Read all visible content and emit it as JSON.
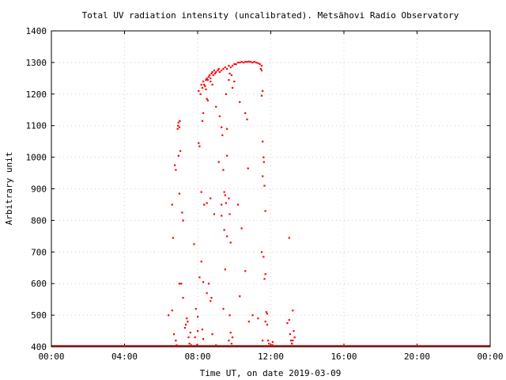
{
  "chart_data": {
    "type": "scatter",
    "title": "Total UV radiation intensity (uncalibrated). Metsähovi Radio Observatory",
    "xlabel": "Time UT, on date 2019-03-09",
    "ylabel": "Arbitrary unit",
    "xlim": [
      0,
      24
    ],
    "ylim": [
      400,
      1400
    ],
    "x_ticks": [
      0,
      4,
      8,
      12,
      16,
      20,
      24
    ],
    "x_tick_labels": [
      "00:00",
      "04:00",
      "08:00",
      "12:00",
      "16:00",
      "20:00",
      "00:00"
    ],
    "y_ticks": [
      400,
      500,
      600,
      700,
      800,
      900,
      1000,
      1100,
      1200,
      1300,
      1400
    ],
    "grid": true,
    "series": [
      {
        "color": "#ff0000",
        "baseline": {
          "x_range": [
            0,
            24
          ],
          "y": 400
        },
        "points": [
          [
            6.4,
            500
          ],
          [
            6.6,
            515
          ],
          [
            6.7,
            440
          ],
          [
            6.8,
            420
          ],
          [
            6.85,
            405
          ],
          [
            6.6,
            850
          ],
          [
            6.65,
            745
          ],
          [
            6.75,
            975
          ],
          [
            6.8,
            960
          ],
          [
            6.9,
            1090
          ],
          [
            6.92,
            1100
          ],
          [
            6.95,
            1110
          ],
          [
            7.0,
            1095
          ],
          [
            7.02,
            1115
          ],
          [
            6.95,
            1005
          ],
          [
            7.05,
            1020
          ],
          [
            7.0,
            885
          ],
          [
            7.15,
            825
          ],
          [
            7.2,
            800
          ],
          [
            7.0,
            600
          ],
          [
            7.1,
            600
          ],
          [
            7.2,
            555
          ],
          [
            7.3,
            460
          ],
          [
            7.35,
            470
          ],
          [
            7.4,
            490
          ],
          [
            7.45,
            480
          ],
          [
            7.5,
            430
          ],
          [
            7.6,
            445
          ],
          [
            7.55,
            410
          ],
          [
            7.65,
            405
          ],
          [
            7.8,
            725
          ],
          [
            7.9,
            520
          ],
          [
            8.0,
            450
          ],
          [
            7.85,
            430
          ],
          [
            7.95,
            405
          ],
          [
            8.05,
            1210
          ],
          [
            8.05,
            1045
          ],
          [
            8.1,
            1035
          ],
          [
            8.15,
            1200
          ],
          [
            8.2,
            1230
          ],
          [
            8.25,
            1220
          ],
          [
            8.3,
            1240
          ],
          [
            8.35,
            1230
          ],
          [
            8.4,
            1225
          ],
          [
            8.45,
            1245
          ],
          [
            8.5,
            1250
          ],
          [
            8.55,
            1245
          ],
          [
            8.6,
            1255
          ],
          [
            8.65,
            1260
          ],
          [
            8.7,
            1250
          ],
          [
            8.75,
            1265
          ],
          [
            8.8,
            1270
          ],
          [
            8.85,
            1260
          ],
          [
            8.9,
            1275
          ],
          [
            8.95,
            1265
          ],
          [
            9.0,
            1270
          ],
          [
            9.1,
            1275
          ],
          [
            9.15,
            1280
          ],
          [
            9.2,
            1270
          ],
          [
            9.3,
            1275
          ],
          [
            9.4,
            1280
          ],
          [
            9.5,
            1285
          ],
          [
            9.6,
            1280
          ],
          [
            9.7,
            1290
          ],
          [
            9.8,
            1285
          ],
          [
            9.9,
            1290
          ],
          [
            10.0,
            1295
          ],
          [
            10.1,
            1295
          ],
          [
            10.2,
            1300
          ],
          [
            10.3,
            1300
          ],
          [
            10.4,
            1302
          ],
          [
            10.5,
            1300
          ],
          [
            10.6,
            1302
          ],
          [
            10.7,
            1302
          ],
          [
            10.8,
            1303
          ],
          [
            10.9,
            1302
          ],
          [
            11.0,
            1300
          ],
          [
            11.1,
            1302
          ],
          [
            11.2,
            1300
          ],
          [
            11.3,
            1298
          ],
          [
            11.4,
            1295
          ],
          [
            11.5,
            1290
          ],
          [
            11.45,
            1280
          ],
          [
            11.5,
            1275
          ],
          [
            11.55,
            1210
          ],
          [
            11.5,
            1195
          ],
          [
            8.3,
            1140
          ],
          [
            8.25,
            1115
          ],
          [
            8.5,
            1185
          ],
          [
            8.45,
            1215
          ],
          [
            8.55,
            1180
          ],
          [
            8.7,
            1240
          ],
          [
            8.8,
            1230
          ],
          [
            9.0,
            1160
          ],
          [
            9.2,
            1130
          ],
          [
            9.3,
            1095
          ],
          [
            9.35,
            1070
          ],
          [
            9.6,
            1090
          ],
          [
            9.55,
            1200
          ],
          [
            9.7,
            1245
          ],
          [
            9.75,
            1265
          ],
          [
            8.2,
            890
          ],
          [
            8.35,
            850
          ],
          [
            8.5,
            855
          ],
          [
            8.7,
            870
          ],
          [
            8.9,
            820
          ],
          [
            9.15,
            985
          ],
          [
            9.3,
            850
          ],
          [
            9.4,
            960
          ],
          [
            9.45,
            890
          ],
          [
            9.5,
            880
          ],
          [
            9.55,
            855
          ],
          [
            9.6,
            1005
          ],
          [
            9.7,
            870
          ],
          [
            9.75,
            820
          ],
          [
            9.9,
            1220
          ],
          [
            9.85,
            1260
          ],
          [
            10.0,
            1240
          ],
          [
            10.3,
            1175
          ],
          [
            10.7,
            1120
          ],
          [
            10.6,
            1140
          ],
          [
            10.75,
            965
          ],
          [
            9.3,
            815
          ],
          [
            9.45,
            770
          ],
          [
            9.6,
            750
          ],
          [
            9.8,
            730
          ],
          [
            10.2,
            850
          ],
          [
            10.4,
            775
          ],
          [
            10.6,
            640
          ],
          [
            10.3,
            560
          ],
          [
            10.8,
            480
          ],
          [
            11.0,
            500
          ],
          [
            11.3,
            490
          ],
          [
            11.5,
            700
          ],
          [
            11.55,
            1050
          ],
          [
            11.6,
            1000
          ],
          [
            11.62,
            985
          ],
          [
            11.55,
            940
          ],
          [
            11.65,
            910
          ],
          [
            11.7,
            830
          ],
          [
            11.6,
            685
          ],
          [
            11.7,
            630
          ],
          [
            11.65,
            615
          ],
          [
            11.75,
            510
          ],
          [
            11.8,
            505
          ],
          [
            11.7,
            480
          ],
          [
            11.8,
            470
          ],
          [
            11.85,
            420
          ],
          [
            11.9,
            410
          ],
          [
            12.0,
            405
          ],
          [
            12.1,
            405
          ],
          [
            12.2,
            402
          ],
          [
            8.2,
            670
          ],
          [
            8.1,
            620
          ],
          [
            8.3,
            605
          ],
          [
            8.5,
            570
          ],
          [
            8.6,
            600
          ],
          [
            8.7,
            545
          ],
          [
            8.75,
            555
          ],
          [
            8.0,
            495
          ],
          [
            8.25,
            455
          ],
          [
            8.8,
            440
          ],
          [
            8.3,
            425
          ],
          [
            9.0,
            405
          ],
          [
            9.4,
            520
          ],
          [
            9.5,
            645
          ],
          [
            9.75,
            500
          ],
          [
            9.8,
            445
          ],
          [
            9.9,
            430
          ],
          [
            9.7,
            420
          ],
          [
            9.85,
            410
          ],
          [
            11.55,
            420
          ],
          [
            12.1,
            415
          ],
          [
            12.9,
            475
          ],
          [
            13.0,
            485
          ],
          [
            13.05,
            440
          ],
          [
            13.1,
            420
          ],
          [
            13.2,
            515
          ],
          [
            13.25,
            450
          ],
          [
            13.3,
            430
          ],
          [
            13.2,
            420
          ],
          [
            13.0,
            745
          ],
          [
            13.15,
            410
          ]
        ]
      }
    ]
  }
}
